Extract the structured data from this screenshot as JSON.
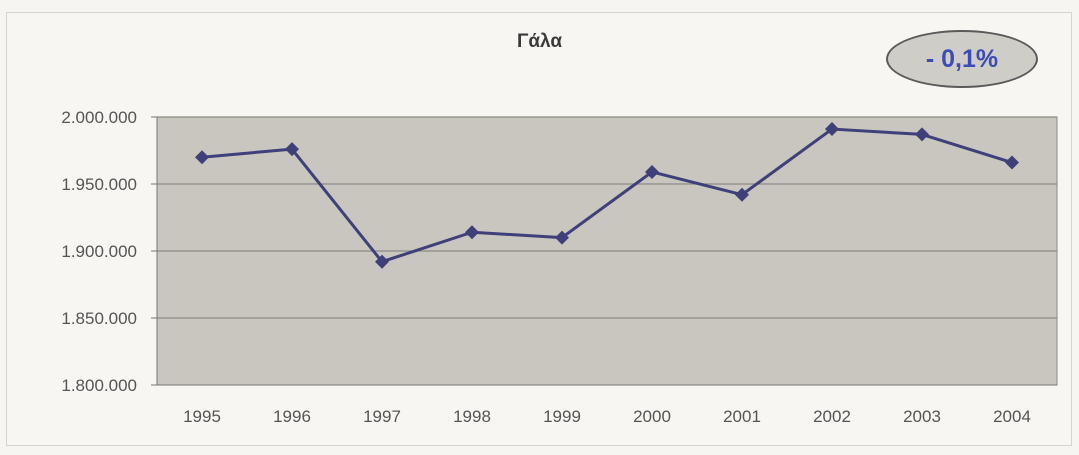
{
  "badge": {
    "text": "- 0,1%"
  },
  "colors": {
    "line": "#3f3f7a",
    "plot_background": "#c9c6c0",
    "gridline": "#8c8a86"
  },
  "chart_data": {
    "type": "line",
    "title": "Γάλα",
    "xlabel": "",
    "ylabel": "",
    "categories": [
      "1995",
      "1996",
      "1997",
      "1998",
      "1999",
      "2000",
      "2001",
      "2002",
      "2003",
      "2004"
    ],
    "series": [
      {
        "values": [
          1970000,
          1976000,
          1892000,
          1914000,
          1910000,
          1959000,
          1942000,
          1991000,
          1987000,
          1966000
        ]
      }
    ],
    "ylim": [
      1800000,
      2000000
    ],
    "yticks": [
      1800000,
      1850000,
      1900000,
      1950000,
      2000000
    ],
    "ytick_labels": [
      "1.800.000",
      "1.850.000",
      "1.900.000",
      "1.950.000",
      "2.000.000"
    ],
    "grid": true,
    "legend": "none",
    "marker": "diamond"
  }
}
